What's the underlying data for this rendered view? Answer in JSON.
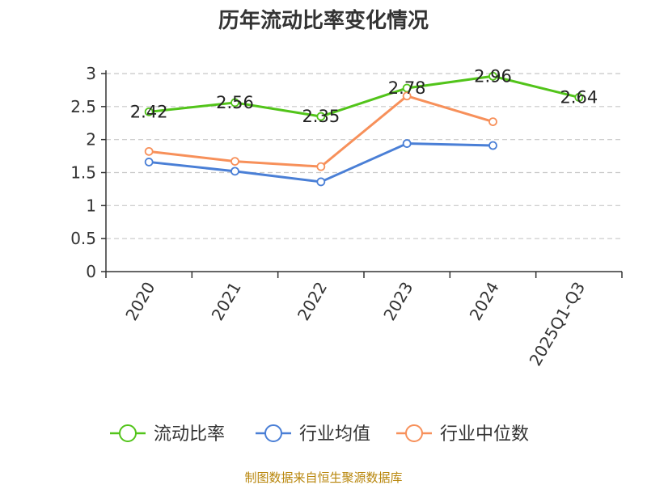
{
  "chart_data": {
    "type": "line",
    "title": "历年流动比率变化情况",
    "categories": [
      "2020",
      "2021",
      "2022",
      "2023",
      "2024",
      "2025Q1-Q3"
    ],
    "yticks": [
      "0",
      "0.5",
      "1",
      "1.5",
      "2",
      "2.5",
      "3"
    ],
    "ylim": [
      0,
      3
    ],
    "grid": true,
    "legend_position": "bottom",
    "series": [
      {
        "name": "流动比率",
        "color": "#52c41a",
        "values": [
          2.42,
          2.56,
          2.35,
          2.78,
          2.96,
          2.64
        ],
        "labels": [
          "2.42",
          "2.56",
          "2.35",
          "2.78",
          "2.96",
          "2.64"
        ]
      },
      {
        "name": "行业均值",
        "color": "#4a7fd6",
        "values": [
          1.66,
          1.52,
          1.36,
          1.94,
          1.91,
          null
        ]
      },
      {
        "name": "行业中位数",
        "color": "#f7905a",
        "values": [
          1.82,
          1.67,
          1.59,
          2.66,
          2.27,
          null
        ]
      }
    ]
  },
  "source": "制图数据来自恒生聚源数据库"
}
